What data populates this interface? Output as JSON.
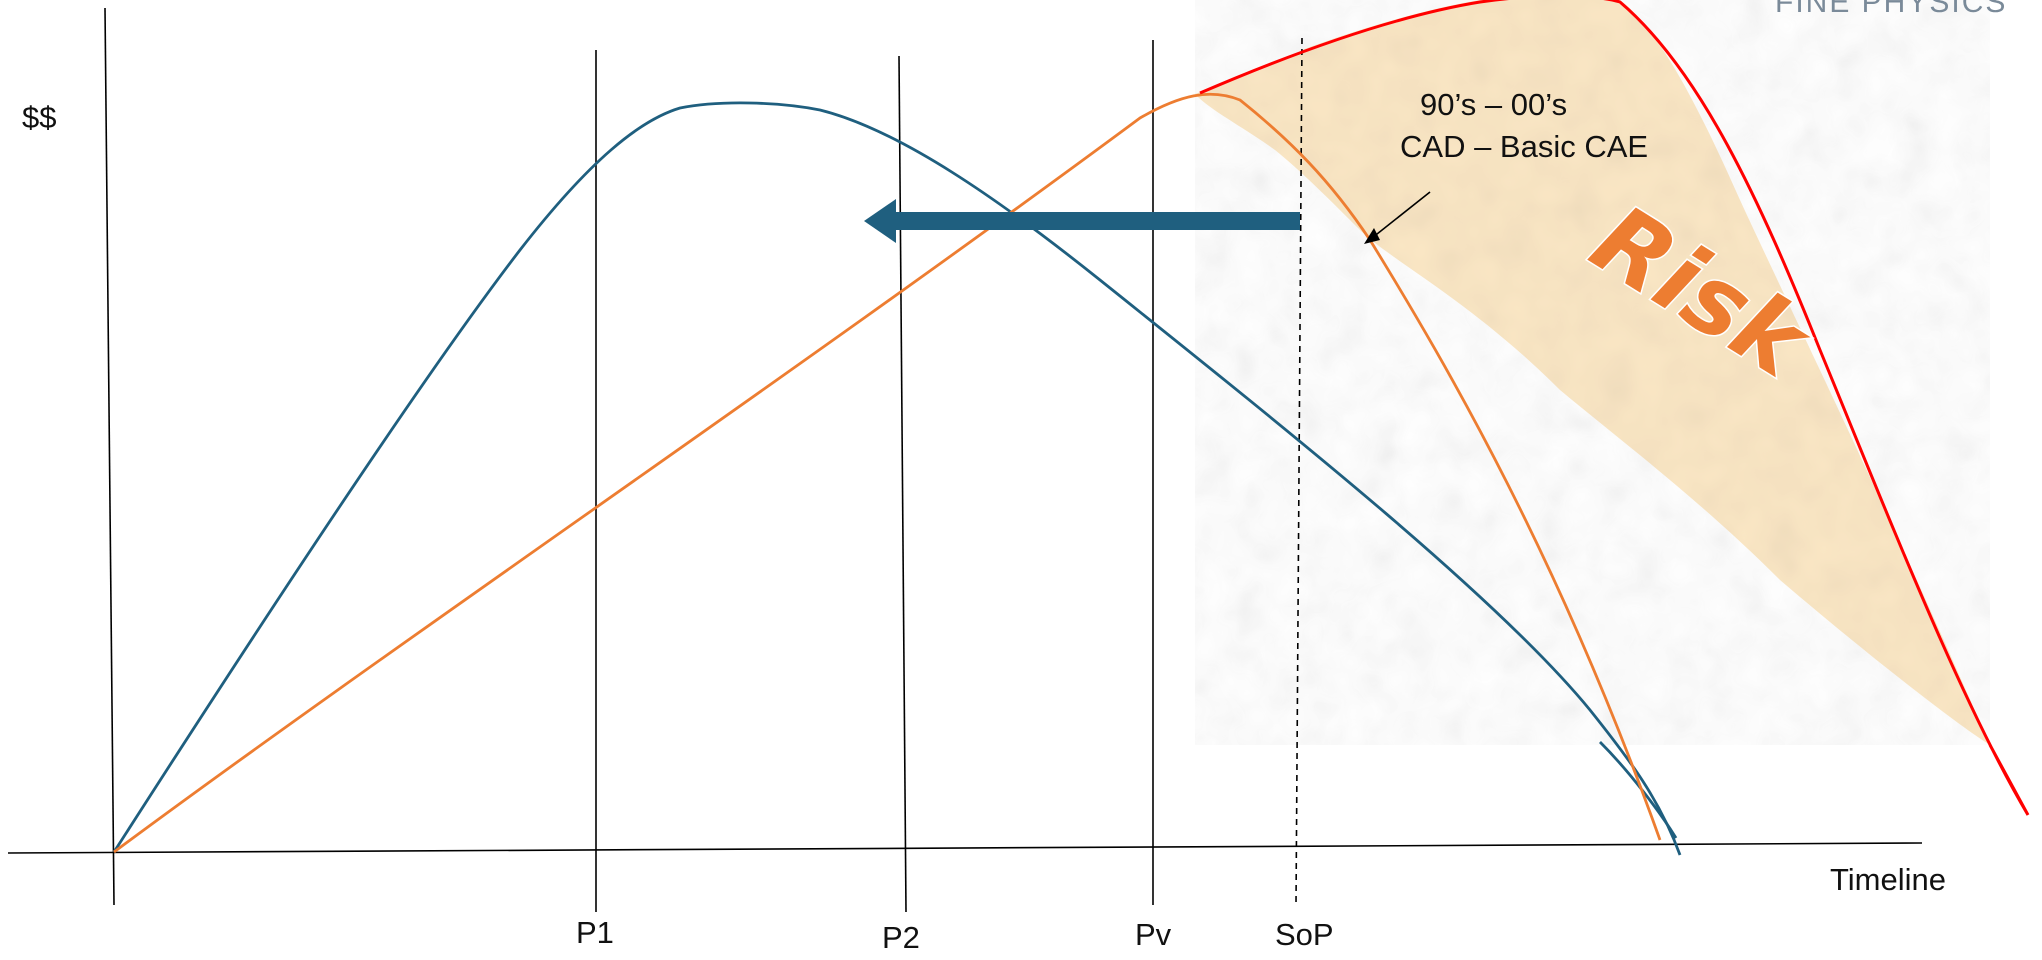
{
  "brand": {
    "text": "FINE PHYSICS"
  },
  "axes": {
    "y_label": "$$",
    "x_label": "Timeline"
  },
  "milestones": [
    {
      "id": "p1",
      "label": "P1"
    },
    {
      "id": "p2",
      "label": "P2"
    },
    {
      "id": "pv",
      "label": "Pv"
    },
    {
      "id": "sop",
      "label": "SoP"
    }
  ],
  "annotation": {
    "line1": "90’s – 00’s",
    "line2": "CAD – Basic CAE"
  },
  "risk": {
    "label": "Risk",
    "fill_color": "#ed7d31",
    "band_color": "#fbe6c2"
  },
  "colors": {
    "blue_curve": "#1f5f7f",
    "orange_curve": "#ed7d31",
    "red_curve": "#ff0000",
    "arrow": "#1f5f7f",
    "axis": "#000000"
  }
}
